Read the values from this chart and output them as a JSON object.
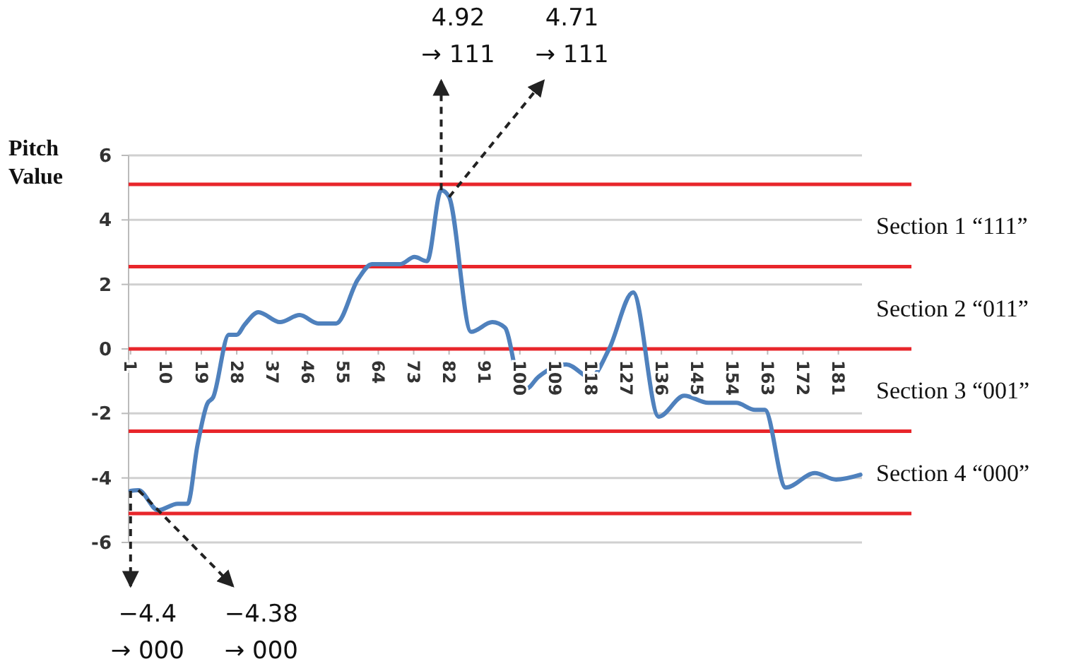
{
  "chart_data": {
    "type": "line",
    "ylabel": "Pitch Value",
    "xlim": [
      0.5,
      187
    ],
    "xticks": [
      1,
      10,
      19,
      28,
      37,
      46,
      55,
      64,
      73,
      82,
      91,
      100,
      109,
      118,
      127,
      136,
      145,
      154,
      163,
      172,
      181
    ],
    "ylim": [
      -6,
      6
    ],
    "yticks": [
      -6,
      -4,
      -2,
      0,
      2,
      4,
      6
    ],
    "grid": "y",
    "marker": "none",
    "line_style": "solid",
    "series": [
      {
        "color": "#4f81bd",
        "x": [
          1,
          3,
          8,
          13,
          15.5,
          18,
          20.5,
          22,
          26,
          28,
          30,
          33.5,
          39,
          44,
          48.7,
          53.3,
          58.8,
          62.4,
          69.6,
          73.2,
          76.4,
          80,
          82,
          87.6,
          93,
          96.2,
          100,
          101.7,
          104.6,
          111.8,
          118,
          122.7,
          128.8,
          135.3,
          141.8,
          147.9,
          155,
          159.8,
          162.3,
          167.6,
          175,
          180.4,
          186.6
        ],
        "values": [
          -4.4,
          -4.38,
          -5.0,
          -4.8,
          -4.8,
          -3.0,
          -1.7,
          -1.5,
          0.44,
          0.44,
          0.75,
          1.14,
          0.83,
          1.05,
          0.79,
          0.79,
          2.15,
          2.63,
          2.63,
          2.85,
          2.72,
          4.92,
          4.71,
          0.53,
          0.83,
          0.66,
          -1.1,
          -1.23,
          -0.88,
          -0.48,
          -0.88,
          0,
          1.75,
          -2.1,
          -1.45,
          -1.67,
          -1.67,
          -1.89,
          -1.89,
          -4.3,
          -3.85,
          -4.05,
          -3.9
        ]
      }
    ],
    "ref_lines": [
      {
        "axis": "y",
        "value": 5.1,
        "color": "#e8262b"
      },
      {
        "axis": "y",
        "value": 2.55,
        "color": "#e8262b"
      },
      {
        "axis": "y",
        "value": 0,
        "color": "#e8262b"
      },
      {
        "axis": "y",
        "value": -2.55,
        "color": "#e8262b"
      },
      {
        "axis": "y",
        "value": -5.1,
        "color": "#e8262b"
      }
    ],
    "annotations": [
      "Section 1 “111”",
      "Section 2 “011”",
      "Section 3 “001”",
      "Section 4 “000”",
      {
        "text": "4.92\n→ 111",
        "x": 80,
        "y": 4.92
      },
      {
        "text": "4.71\n→ 111",
        "x": 82,
        "y": 4.71
      },
      {
        "text": "−4.4\n→ 000",
        "x": 1,
        "y": -4.4
      },
      {
        "text": "−4.38\n→ 000",
        "x": 3,
        "y": -4.38
      }
    ]
  }
}
